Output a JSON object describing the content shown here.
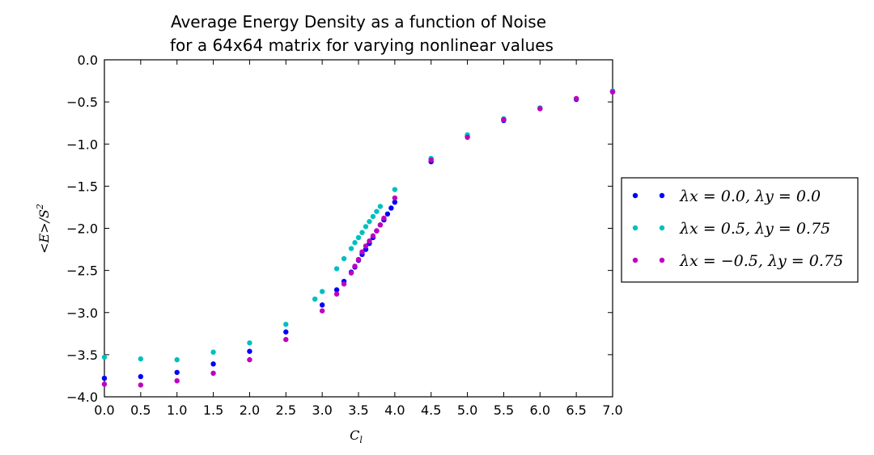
{
  "chart_data": {
    "type": "scatter",
    "title_line1": "Average Energy Density as a function of Noise",
    "title_line2": "for a 64x64 matrix for varying nonlinear values",
    "xlabel": "C_l",
    "ylabel": "<E>/S^2",
    "xlim": [
      0.0,
      7.0
    ],
    "ylim": [
      -4.0,
      0.0
    ],
    "x_ticks": [
      "0.0",
      "0.5",
      "1.0",
      "1.5",
      "2.0",
      "2.5",
      "3.0",
      "3.5",
      "4.0",
      "4.5",
      "5.0",
      "5.5",
      "6.0",
      "6.5",
      "7.0"
    ],
    "y_ticks": [
      "0.0",
      "−0.5",
      "−1.0",
      "−1.5",
      "−2.0",
      "−2.5",
      "−3.0",
      "−3.5",
      "−4.0"
    ],
    "grid": false,
    "legend_position": "right-outside",
    "series": [
      {
        "name": "λx = 0.0, λy = 0.0",
        "color": "#0000ff",
        "x": [
          0.0,
          0.5,
          1.0,
          1.5,
          2.0,
          2.5,
          3.0,
          3.2,
          3.3,
          3.4,
          3.45,
          3.5,
          3.55,
          3.6,
          3.65,
          3.7,
          3.75,
          3.8,
          3.85,
          3.9,
          3.95,
          4.0,
          4.5,
          5.0,
          5.5,
          6.0,
          6.5,
          7.0
        ],
        "y": [
          -3.78,
          -3.76,
          -3.71,
          -3.61,
          -3.46,
          -3.23,
          -2.91,
          -2.73,
          -2.63,
          -2.52,
          -2.46,
          -2.38,
          -2.31,
          -2.25,
          -2.18,
          -2.11,
          -2.03,
          -1.96,
          -1.9,
          -1.83,
          -1.76,
          -1.69,
          -1.21,
          -0.91,
          -0.72,
          -0.58,
          -0.47,
          -0.38
        ]
      },
      {
        "name": "λx = 0.5, λy = 0.75",
        "color": "#00bfbf",
        "x": [
          0.0,
          0.5,
          1.0,
          1.5,
          2.0,
          2.5,
          2.9,
          3.0,
          3.2,
          3.3,
          3.4,
          3.45,
          3.5,
          3.55,
          3.6,
          3.65,
          3.7,
          3.75,
          3.8,
          4.0,
          4.5,
          5.0,
          5.5,
          6.0,
          6.5,
          7.0
        ],
        "y": [
          -3.53,
          -3.55,
          -3.56,
          -3.47,
          -3.36,
          -3.14,
          -2.84,
          -2.75,
          -2.48,
          -2.36,
          -2.24,
          -2.17,
          -2.11,
          -2.05,
          -1.98,
          -1.92,
          -1.86,
          -1.8,
          -1.74,
          -1.54,
          -1.17,
          -0.89,
          -0.7,
          -0.57,
          -0.46,
          -0.37
        ]
      },
      {
        "name": "λx = −0.5, λy = 0.75",
        "color": "#bf00bf",
        "x": [
          0.0,
          0.5,
          1.0,
          1.5,
          2.0,
          2.5,
          3.0,
          3.2,
          3.3,
          3.4,
          3.45,
          3.5,
          3.55,
          3.6,
          3.65,
          3.7,
          3.75,
          3.8,
          3.85,
          4.0,
          4.5,
          5.0,
          5.5,
          6.0,
          6.5,
          7.0
        ],
        "y": [
          -3.85,
          -3.86,
          -3.81,
          -3.72,
          -3.56,
          -3.32,
          -2.98,
          -2.78,
          -2.66,
          -2.53,
          -2.45,
          -2.37,
          -2.28,
          -2.21,
          -2.15,
          -2.09,
          -2.03,
          -1.96,
          -1.88,
          -1.64,
          -1.19,
          -0.92,
          -0.71,
          -0.58,
          -0.46,
          -0.38
        ]
      }
    ]
  },
  "legend": {
    "items": [
      {
        "text": "λx = 0.0, λy = 0.0",
        "color": "#0000ff"
      },
      {
        "text": "λx = 0.5, λy = 0.75",
        "color": "#00bfbf"
      },
      {
        "text": "λx = −0.5, λy = 0.75",
        "color": "#bf00bf"
      }
    ]
  }
}
